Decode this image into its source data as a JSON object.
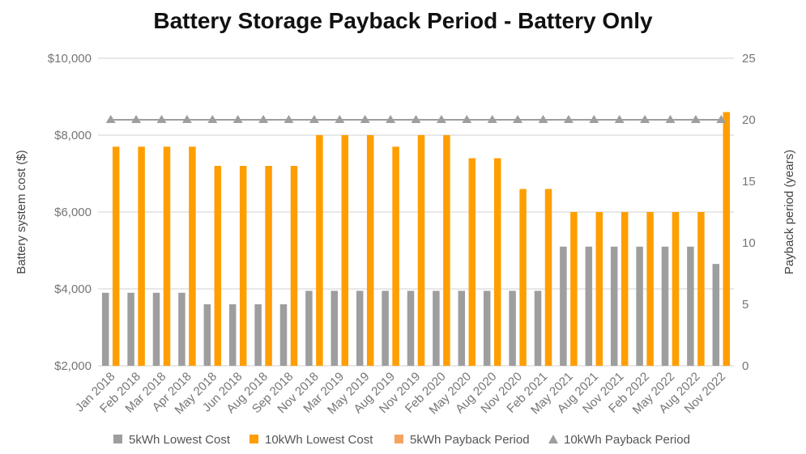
{
  "chart_data": {
    "type": "bar",
    "title": "Battery Storage Payback Period - Battery Only",
    "xlabel": "",
    "ylabel": "Battery system cost ($)",
    "y2label": "Payback period (years)",
    "ylim": [
      2000,
      10000
    ],
    "y2lim": [
      0,
      25
    ],
    "yticks": [
      "$2,000",
      "$4,000",
      "$6,000",
      "$8,000",
      "$10,000"
    ],
    "yticks_values": [
      2000,
      4000,
      6000,
      8000,
      10000
    ],
    "y2ticks": [
      "0",
      "5",
      "10",
      "15",
      "20",
      "25"
    ],
    "y2ticks_values": [
      0,
      5,
      10,
      15,
      20,
      25
    ],
    "grid": true,
    "legend_position": "bottom",
    "categories": [
      "Jan 2018",
      "Feb 2018",
      "Mar 2018",
      "Apr 2018",
      "May 2018",
      "Jun 2018",
      "Aug 2018",
      "Sep 2018",
      "Nov 2018",
      "Mar 2019",
      "May 2019",
      "Aug 2019",
      "Nov 2019",
      "Feb 2020",
      "May 2020",
      "Aug 2020",
      "Nov 2020",
      "Feb 2021",
      "May 2021",
      "Aug 2021",
      "Nov 2021",
      "Feb 2022",
      "May 2022",
      "Aug 2022",
      "Nov 2022"
    ],
    "series": [
      {
        "name": "5kWh Lowest Cost",
        "type": "bar",
        "axis": "left",
        "color": "#9e9e9e",
        "values": [
          3900,
          3900,
          3900,
          3900,
          3600,
          3600,
          3600,
          3600,
          3950,
          3950,
          3950,
          3950,
          3950,
          3950,
          3950,
          3950,
          3950,
          3950,
          5100,
          5100,
          5100,
          5100,
          5100,
          5100,
          4650
        ]
      },
      {
        "name": "10kWh Lowest Cost",
        "type": "bar",
        "axis": "left",
        "color": "#ff9e00",
        "values": [
          7700,
          7700,
          7700,
          7700,
          7200,
          7200,
          7200,
          7200,
          8000,
          8000,
          8000,
          7700,
          8000,
          8000,
          7400,
          7400,
          6600,
          6600,
          6000,
          6000,
          6000,
          6000,
          6000,
          6000,
          8600
        ]
      },
      {
        "name": "5kWh Payback Period",
        "type": "line",
        "axis": "right",
        "color": "#f4a460",
        "values": [
          20,
          20,
          20,
          20,
          20,
          20,
          20,
          20,
          20,
          20,
          20,
          20,
          20,
          20,
          20,
          20,
          20,
          20,
          20,
          20,
          20,
          20,
          20,
          20,
          20
        ]
      },
      {
        "name": "10kWh Payback Period",
        "type": "line",
        "axis": "right",
        "color": "#9e9e9e",
        "marker": "triangle",
        "values": [
          20,
          20,
          20,
          20,
          20,
          20,
          20,
          20,
          20,
          20,
          20,
          20,
          20,
          20,
          20,
          20,
          20,
          20,
          20,
          20,
          20,
          20,
          20,
          20,
          20
        ]
      }
    ]
  }
}
